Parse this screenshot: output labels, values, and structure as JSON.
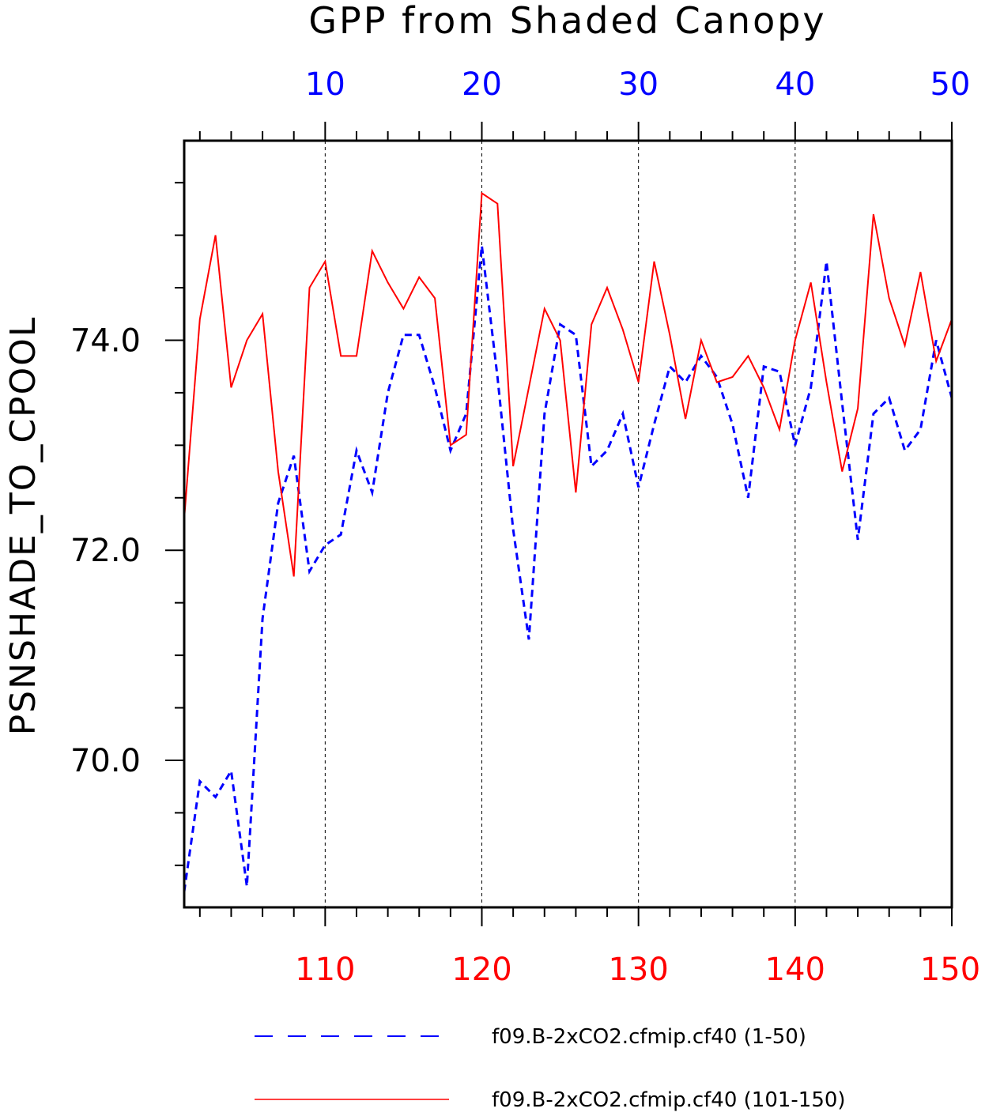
{
  "chart_data": {
    "type": "line",
    "title": "GPP from Shaded Canopy",
    "ylabel": "PSNSHADE_TO_CPOOL",
    "xlabel": "",
    "ylim": [
      68.6,
      75.9
    ],
    "y_major_ticks": [
      "70.0",
      "72.0",
      "74.0"
    ],
    "y_minor_step": 0.5,
    "grid_x_dashed": true,
    "legend_position": "bottom",
    "top_axis": {
      "color": "#0000ff",
      "range": [
        1,
        50
      ],
      "tick_labels": [
        "10",
        "20",
        "30",
        "40",
        "50"
      ],
      "tick_values": [
        10,
        20,
        30,
        40,
        50
      ],
      "minor_step": 2
    },
    "bottom_axis": {
      "color": "#ff0000",
      "range": [
        101,
        150
      ],
      "tick_labels": [
        "110",
        "120",
        "130",
        "140",
        "150"
      ],
      "tick_values": [
        110,
        120,
        130,
        140,
        150
      ],
      "minor_step": 2
    },
    "series": [
      {
        "name": "f09.B-2xCO2.cfmip.cf40 (1-50)",
        "color": "#0000ff",
        "style": "dashed",
        "axis": "top",
        "x_start": 1,
        "values": [
          68.75,
          69.8,
          69.65,
          69.9,
          68.8,
          71.35,
          72.45,
          72.9,
          71.8,
          72.05,
          72.15,
          72.95,
          72.55,
          73.5,
          74.05,
          74.05,
          73.55,
          72.95,
          73.3,
          74.9,
          73.65,
          72.2,
          71.15,
          73.3,
          74.15,
          74.05,
          72.8,
          72.95,
          73.3,
          72.6,
          73.2,
          73.75,
          73.6,
          73.85,
          73.65,
          73.2,
          72.5,
          73.75,
          73.7,
          73.0,
          73.55,
          74.75,
          73.4,
          72.1,
          73.3,
          73.45,
          72.95,
          73.15,
          74.0,
          73.45
        ]
      },
      {
        "name": "f09.B-2xCO2.cfmip.cf40 (101-150)",
        "color": "#ff0000",
        "style": "solid",
        "axis": "bottom",
        "x_start": 101,
        "values": [
          72.3,
          74.2,
          75.0,
          73.55,
          74.0,
          74.25,
          72.75,
          71.75,
          74.5,
          74.75,
          73.85,
          73.85,
          74.85,
          74.55,
          74.3,
          74.6,
          74.4,
          73.0,
          73.1,
          75.4,
          75.3,
          72.8,
          73.55,
          74.3,
          74.0,
          72.55,
          74.15,
          74.5,
          74.1,
          73.6,
          74.75,
          74.05,
          73.25,
          74.0,
          73.6,
          73.65,
          73.85,
          73.55,
          73.15,
          74.0,
          74.55,
          73.6,
          72.75,
          73.35,
          75.2,
          74.4,
          73.95,
          74.65,
          73.8,
          74.2
        ]
      }
    ]
  }
}
